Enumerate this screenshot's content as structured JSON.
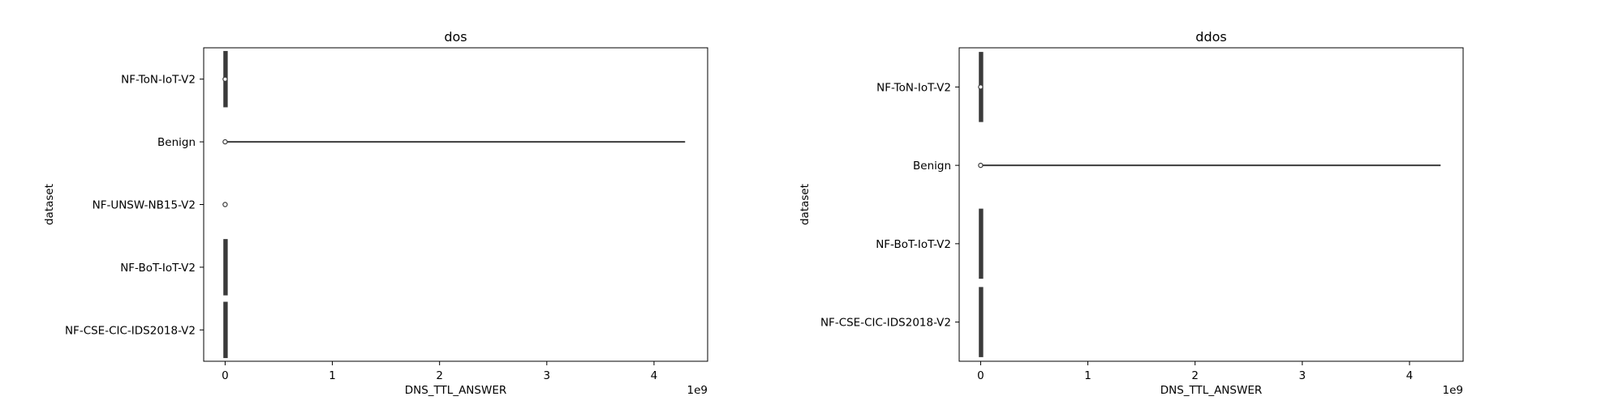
{
  "chart_data": [
    {
      "type": "violin",
      "title": "dos",
      "xlabel": "DNS_TTL_ANSWER",
      "ylabel": "dataset",
      "x_offset_label": "1e9",
      "xlim": [
        -0.2,
        4.5
      ],
      "xticks": [
        0,
        1,
        2,
        3,
        4
      ],
      "categories": [
        "NF-ToN-IoT-V2",
        "Benign",
        "NF-UNSW-NB15-V2",
        "NF-BoT-IoT-V2",
        "NF-CSE-CIC-IDS2018-V2"
      ],
      "series": [
        {
          "category": "NF-ToN-IoT-V2",
          "min": 0,
          "max": 0.003,
          "median": 0.0,
          "spread": 0.44
        },
        {
          "category": "Benign",
          "min": 0,
          "max": 4.29,
          "median": 0.0,
          "spread": 0.02
        },
        {
          "category": "NF-UNSW-NB15-V2",
          "min": 0,
          "max": 0,
          "median": 0.0,
          "spread": 0.0
        },
        {
          "category": "NF-BoT-IoT-V2",
          "min": 0,
          "max": 0,
          "median": 0.0,
          "spread": 0.44
        },
        {
          "category": "NF-CSE-CIC-IDS2018-V2",
          "min": 0,
          "max": 0,
          "median": 0.0,
          "spread": 0.44
        }
      ]
    },
    {
      "type": "violin",
      "title": "ddos",
      "xlabel": "DNS_TTL_ANSWER",
      "ylabel": "dataset",
      "x_offset_label": "1e9",
      "xlim": [
        -0.2,
        4.5
      ],
      "xticks": [
        0,
        1,
        2,
        3,
        4
      ],
      "categories": [
        "NF-ToN-IoT-V2",
        "Benign",
        "NF-BoT-IoT-V2",
        "NF-CSE-CIC-IDS2018-V2"
      ],
      "series": [
        {
          "category": "NF-ToN-IoT-V2",
          "min": 0,
          "max": 0.003,
          "median": 0.0,
          "spread": 0.44
        },
        {
          "category": "Benign",
          "min": 0,
          "max": 4.29,
          "median": 0.0,
          "spread": 0.02
        },
        {
          "category": "NF-BoT-IoT-V2",
          "min": 0,
          "max": 0,
          "median": 0.0,
          "spread": 0.44
        },
        {
          "category": "NF-CSE-CIC-IDS2018-V2",
          "min": 0,
          "max": 0,
          "median": 0.0,
          "spread": 0.44
        }
      ]
    }
  ]
}
